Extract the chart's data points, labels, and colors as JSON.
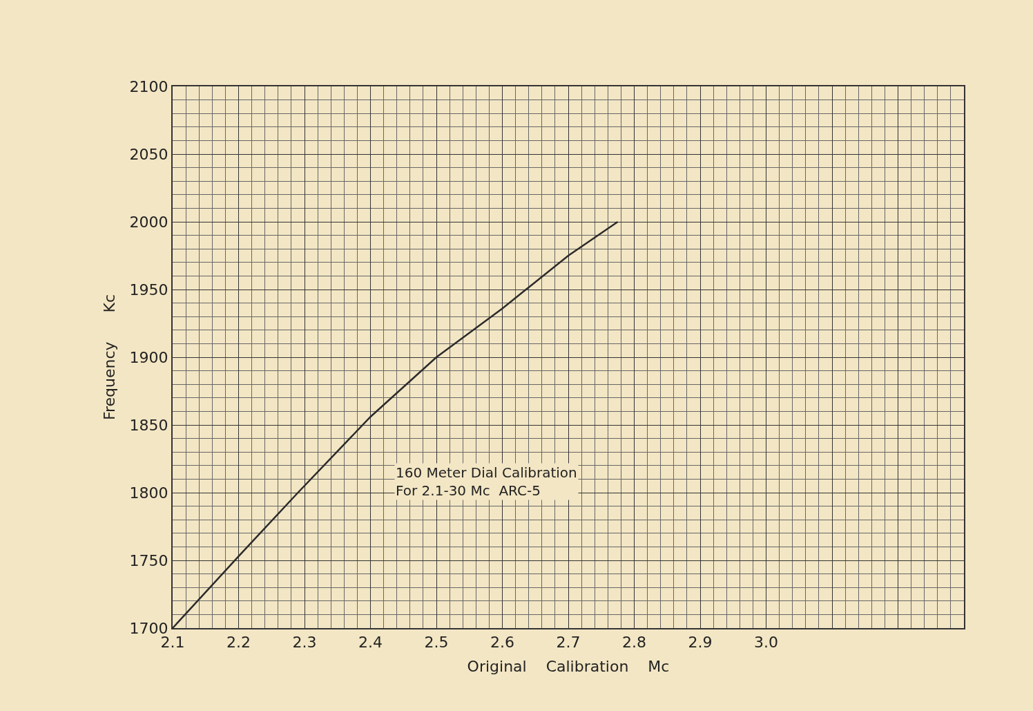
{
  "chart_data": {
    "type": "line",
    "xlabel": "Original    Calibration    Mc",
    "ylabel": "Frequency      Kc",
    "annotations": [
      "160 Meter Dial Calibration\nFor 2.1-30 Mc  ARC-5"
    ],
    "series": [
      {
        "color": "#2b2b2b",
        "x": [
          2.1,
          2.2,
          2.29,
          2.4,
          2.5,
          2.6,
          2.7,
          2.775
        ],
        "values": [
          1700,
          1753,
          1800,
          1856,
          1900,
          1936,
          1975,
          2000
        ]
      }
    ],
    "xlim": [
      2.1,
      3.3
    ],
    "xticks": [
      {
        "value": 2.1,
        "label": "2.1"
      },
      {
        "value": 2.2,
        "label": "2.2"
      },
      {
        "value": 2.3,
        "label": "2.3"
      },
      {
        "value": 2.4,
        "label": "2.4"
      },
      {
        "value": 2.5,
        "label": "2.5"
      },
      {
        "value": 2.6,
        "label": "2.6"
      },
      {
        "value": 2.7,
        "label": "2.7"
      },
      {
        "value": 2.8,
        "label": "2.8"
      },
      {
        "value": 2.9,
        "label": "2.9"
      },
      {
        "value": 3.0,
        "label": "3.0"
      },
      {
        "value": 3.1,
        "label": null
      },
      {
        "value": 3.2,
        "label": null
      },
      {
        "value": 3.3,
        "label": null
      }
    ],
    "ylim": [
      1700,
      2100
    ],
    "yticks": [
      1700,
      1750,
      1800,
      1850,
      1900,
      1950,
      2000,
      2050,
      2100
    ],
    "grid": true,
    "marker": "none",
    "line_style": "solid"
  }
}
